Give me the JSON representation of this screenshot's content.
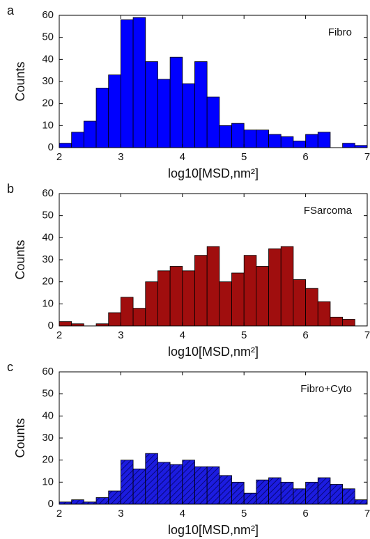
{
  "chart_data": [
    {
      "type": "histogram",
      "panel_label": "a",
      "annotation": "Fibro",
      "xlabel": "log10[MSD,nm²]",
      "ylabel": "Counts",
      "bins": [
        2.0,
        2.2,
        2.4,
        2.6,
        2.8,
        3.0,
        3.2,
        3.4,
        3.6,
        3.8,
        4.0,
        4.2,
        4.4,
        4.6,
        4.8,
        5.0,
        5.2,
        5.4,
        5.6,
        5.8,
        6.0,
        6.2,
        6.4,
        6.6,
        6.8,
        7.0
      ],
      "counts": [
        2,
        7,
        12,
        27,
        33,
        58,
        59,
        39,
        31,
        41,
        29,
        39,
        23,
        10,
        11,
        8,
        8,
        6,
        5,
        3,
        6,
        7,
        0,
        2,
        1
      ],
      "color": "#0000ff",
      "hatch": false,
      "xlim": [
        2,
        7
      ],
      "xticks": [
        2,
        3,
        4,
        5,
        6,
        7
      ],
      "ylim": [
        0,
        60
      ],
      "yticks": [
        0,
        10,
        20,
        30,
        40,
        50,
        60
      ]
    },
    {
      "type": "histogram",
      "panel_label": "b",
      "annotation": "FSarcoma",
      "xlabel": "log10[MSD,nm²]",
      "ylabel": "Counts",
      "bins": [
        2.0,
        2.2,
        2.4,
        2.6,
        2.8,
        3.0,
        3.2,
        3.4,
        3.6,
        3.8,
        4.0,
        4.2,
        4.4,
        4.6,
        4.8,
        5.0,
        5.2,
        5.4,
        5.6,
        5.8,
        6.0,
        6.2,
        6.4,
        6.6,
        6.8,
        7.0
      ],
      "counts": [
        2,
        1,
        0,
        1,
        6,
        13,
        8,
        20,
        25,
        27,
        25,
        32,
        36,
        20,
        24,
        32,
        27,
        35,
        36,
        21,
        17,
        11,
        4,
        3,
        0
      ],
      "color": "#a00e0e",
      "hatch": false,
      "xlim": [
        2,
        7
      ],
      "xticks": [
        2,
        3,
        4,
        5,
        6,
        7
      ],
      "ylim": [
        0,
        60
      ],
      "yticks": [
        0,
        10,
        20,
        30,
        40,
        50,
        60
      ]
    },
    {
      "type": "histogram",
      "panel_label": "c",
      "annotation": "Fibro+Cyto",
      "xlabel": "log10[MSD,nm²]",
      "ylabel": "Counts",
      "bins": [
        2.0,
        2.2,
        2.4,
        2.6,
        2.8,
        3.0,
        3.2,
        3.4,
        3.6,
        3.8,
        4.0,
        4.2,
        4.4,
        4.6,
        4.8,
        5.0,
        5.2,
        5.4,
        5.6,
        5.8,
        6.0,
        6.2,
        6.4,
        6.6,
        6.8,
        7.0
      ],
      "counts": [
        1,
        2,
        1,
        3,
        6,
        20,
        16,
        23,
        19,
        18,
        20,
        17,
        17,
        13,
        10,
        5,
        11,
        12,
        10,
        7,
        10,
        12,
        9,
        7,
        2
      ],
      "color": "#1c1ce0",
      "hatch": true,
      "xlim": [
        2,
        7
      ],
      "xticks": [
        2,
        3,
        4,
        5,
        6,
        7
      ],
      "ylim": [
        0,
        60
      ],
      "yticks": [
        0,
        10,
        20,
        30,
        40,
        50,
        60
      ]
    }
  ]
}
